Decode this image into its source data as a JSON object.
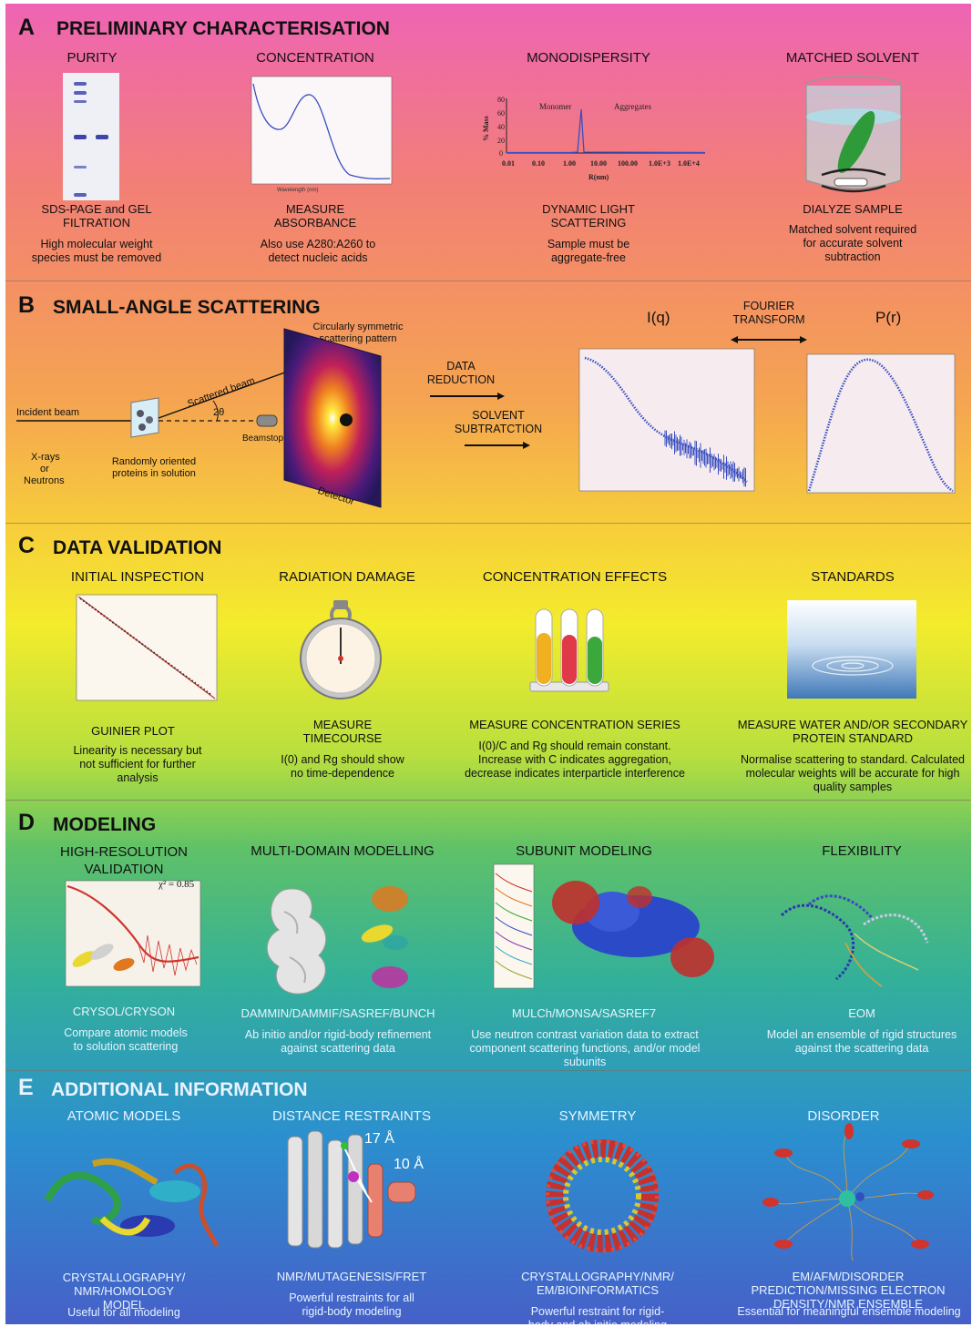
{
  "sections": {
    "A": {
      "letter": "A",
      "title": "PRELIMINARY CHARACTERISATION",
      "cols": [
        {
          "title": "PURITY",
          "method": "SDS-PAGE and GEL FILTRATION",
          "desc": "High molecular weight species must be removed"
        },
        {
          "title": "CONCENTRATION",
          "method": "MEASURE ABSORBANCE",
          "desc": "Also use A280:A260 to detect nucleic acids"
        },
        {
          "title": "MONODISPERSITY",
          "method": "DYNAMIC LIGHT SCATTERING",
          "desc": "Sample must be aggregate-free"
        },
        {
          "title": "MATCHED SOLVENT",
          "method": "DIALYZE SAMPLE",
          "desc": "Matched solvent required for accurate solvent subtraction"
        }
      ],
      "dls": {
        "ylabel": "% Mass",
        "xlabel": "R(nm)",
        "monomer": "Monomer",
        "aggregates": "Aggregates",
        "yticks": [
          "80",
          "60",
          "40",
          "20",
          "0"
        ],
        "xticks": [
          "0.01",
          "0.10",
          "1.00",
          "10.00",
          "100.00",
          "1.0E+3",
          "1.0E+4"
        ]
      }
    },
    "B": {
      "letter": "B",
      "title": "SMALL-ANGLE SCATTERING",
      "labels": {
        "incident": "Incident beam",
        "xrays": "X-rays",
        "or": "or",
        "neutrons": "Neutrons",
        "random": "Randomly oriented proteins in solution",
        "scattered": "Scattered beam",
        "theta": "2θ",
        "beamstop": "Beamstop",
        "circular": "Circularly symmetric scattering pattern",
        "detector": "Detector",
        "data_reduction": "DATA REDUCTION",
        "solvent": "SOLVENT SUBTRATCTION",
        "iq": "I(q)",
        "fourier": "FOURIER TRANSFORM",
        "pr": "P(r)"
      }
    },
    "C": {
      "letter": "C",
      "title": "DATA VALIDATION",
      "cols": [
        {
          "title": "INITIAL INSPECTION",
          "method": "GUINIER PLOT",
          "desc": "Linearity is necessary but not sufficient for further analysis"
        },
        {
          "title": "RADIATION DAMAGE",
          "method": "MEASURE TIMECOURSE",
          "desc": "I(0) and Rg should show no time-dependence"
        },
        {
          "title": "CONCENTRATION EFFECTS",
          "method": "MEASURE CONCENTRATION SERIES",
          "desc": "I(0)/C and Rg should remain constant. Increase with C indicates aggregation, decrease indicates interparticle interference"
        },
        {
          "title": "STANDARDS",
          "method": "MEASURE WATER AND/OR SECONDARY PROTEIN STANDARD",
          "desc": "Normalise scattering to standard.  Calculated molecular weights will be accurate for high quality samples"
        }
      ]
    },
    "D": {
      "letter": "D",
      "title": "MODELING",
      "cols": [
        {
          "title": "HIGH-RESOLUTION VALIDATION",
          "method": "CRYSOL/CRYSON",
          "desc": "Compare atomic models to solution scattering"
        },
        {
          "title": "MULTI-DOMAIN MODELLING",
          "method": "DAMMIN/DAMMIF/SASREF/BUNCH",
          "desc": "Ab initio and/or rigid-body refinement against scattering data"
        },
        {
          "title": "SUBUNIT MODELING",
          "method": "MULCh/MONSA/SASREF7",
          "desc": "Use neutron contrast variation data to extract component scattering functions, and/or model subunits"
        },
        {
          "title": "FLEXIBILITY",
          "method": "EOM",
          "desc": "Model an ensemble of rigid structures against the scattering data"
        }
      ],
      "chi": "χ² = 0.85"
    },
    "E": {
      "letter": "E",
      "title": "ADDITIONAL INFORMATION",
      "cols": [
        {
          "title": "ATOMIC MODELS",
          "method": "CRYSTALLOGRAPHY/ NMR/HOMOLOGY MODEL",
          "desc": "Useful for all modeling"
        },
        {
          "title": "DISTANCE RESTRAINTS",
          "method": "NMR/MUTAGENESIS/FRET",
          "desc": "Powerful restraints for all rigid-body modeling"
        },
        {
          "title": "SYMMETRY",
          "method": "CRYSTALLOGRAPHY/NMR/ EM/BIOINFORMATICS",
          "desc": "Powerful restraint for rigid-body and ab initio modeling"
        },
        {
          "title": "DISORDER",
          "method": "EM/AFM/DISORDER PREDICTION/MISSING ELECTRON DENSITY/NMR ENSEMBLE",
          "desc": "Essential for meaningful ensemble modeling"
        }
      ],
      "d17": "17 Å",
      "d10": "10 Å"
    }
  },
  "colors": {
    "curve": "#3a4fc0",
    "red": "#d0342c",
    "green": "#2e9a3a"
  }
}
